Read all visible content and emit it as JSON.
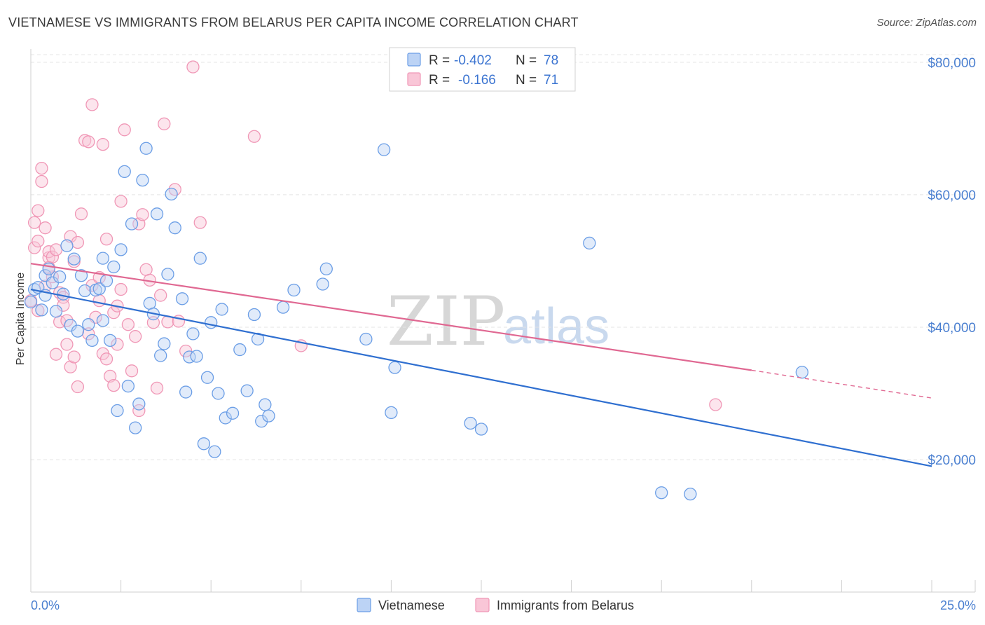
{
  "title": "VIETNAMESE VS IMMIGRANTS FROM BELARUS PER CAPITA INCOME CORRELATION CHART",
  "source": "Source: ZipAtlas.com",
  "watermark": {
    "zip": "ZIP",
    "atlas": "atlas"
  },
  "legend": {
    "rows": [
      {
        "r_label": "R =",
        "r_value": "-0.402",
        "n_label": "N =",
        "n_value": "78"
      },
      {
        "r_label": "R =",
        "r_value": "-0.166",
        "n_label": "N =",
        "n_value": "71"
      }
    ]
  },
  "chart_data": {
    "type": "scatter",
    "title": "VIETNAMESE VS IMMIGRANTS FROM BELARUS PER CAPITA INCOME CORRELATION CHART",
    "xlabel": "",
    "ylabel": "Per Capita Income",
    "xlim": [
      0,
      25
    ],
    "ylim": [
      0,
      82000
    ],
    "x_tick_labels": [
      "0.0%",
      "25.0%"
    ],
    "y_ticks": [
      20000,
      40000,
      60000,
      80000
    ],
    "y_tick_labels": [
      "$20,000",
      "$40,000",
      "$60,000",
      "$80,000"
    ],
    "grid": true,
    "colors": {
      "blue": "#6b9ee6",
      "blue_line": "#2f6fd0",
      "pink": "#f097b6",
      "pink_line": "#e06892"
    },
    "series": [
      {
        "name": "Vietnamese",
        "color": "blue",
        "R": -0.402,
        "N": 78,
        "trend": {
          "x0": 0.0,
          "y0": 45700,
          "x1": 25.0,
          "y1": 19000
        },
        "points": [
          [
            0.0,
            43800
          ],
          [
            0.1,
            45700
          ],
          [
            0.2,
            46000
          ],
          [
            0.3,
            42600
          ],
          [
            0.4,
            44800
          ],
          [
            0.4,
            47800
          ],
          [
            0.5,
            48800
          ],
          [
            0.6,
            46700
          ],
          [
            0.7,
            42400
          ],
          [
            0.8,
            47600
          ],
          [
            0.9,
            45000
          ],
          [
            1.0,
            52300
          ],
          [
            1.1,
            40300
          ],
          [
            1.2,
            50300
          ],
          [
            1.3,
            39400
          ],
          [
            1.4,
            47800
          ],
          [
            1.5,
            45500
          ],
          [
            1.6,
            40400
          ],
          [
            1.7,
            38000
          ],
          [
            1.8,
            45600
          ],
          [
            1.9,
            45800
          ],
          [
            2.0,
            41000
          ],
          [
            2.0,
            50400
          ],
          [
            2.1,
            47000
          ],
          [
            2.2,
            38000
          ],
          [
            2.3,
            49100
          ],
          [
            2.4,
            27400
          ],
          [
            2.5,
            51700
          ],
          [
            2.6,
            63500
          ],
          [
            2.7,
            31100
          ],
          [
            2.8,
            55600
          ],
          [
            2.9,
            24800
          ],
          [
            3.0,
            28400
          ],
          [
            3.1,
            62200
          ],
          [
            3.2,
            67000
          ],
          [
            3.3,
            43600
          ],
          [
            3.4,
            42000
          ],
          [
            3.5,
            57100
          ],
          [
            3.6,
            35700
          ],
          [
            3.7,
            37500
          ],
          [
            3.8,
            48000
          ],
          [
            3.9,
            60100
          ],
          [
            4.0,
            55000
          ],
          [
            4.2,
            44300
          ],
          [
            4.3,
            30200
          ],
          [
            4.4,
            35500
          ],
          [
            4.5,
            39000
          ],
          [
            4.6,
            35600
          ],
          [
            4.7,
            50400
          ],
          [
            4.8,
            22400
          ],
          [
            4.9,
            32400
          ],
          [
            5.0,
            40700
          ],
          [
            5.1,
            21200
          ],
          [
            5.2,
            30000
          ],
          [
            5.3,
            42700
          ],
          [
            5.4,
            26300
          ],
          [
            5.6,
            27000
          ],
          [
            5.8,
            36600
          ],
          [
            6.0,
            30400
          ],
          [
            6.2,
            41900
          ],
          [
            6.3,
            38200
          ],
          [
            6.4,
            25800
          ],
          [
            6.5,
            28300
          ],
          [
            6.6,
            26600
          ],
          [
            7.0,
            43000
          ],
          [
            7.3,
            45600
          ],
          [
            8.1,
            46500
          ],
          [
            8.2,
            48800
          ],
          [
            9.3,
            38200
          ],
          [
            9.8,
            66800
          ],
          [
            10.0,
            27100
          ],
          [
            10.1,
            33900
          ],
          [
            12.2,
            25500
          ],
          [
            12.5,
            24600
          ],
          [
            15.5,
            52700
          ],
          [
            17.5,
            15000
          ],
          [
            18.3,
            14800
          ],
          [
            21.4,
            33200
          ]
        ]
      },
      {
        "name": "Immigrants from Belarus",
        "color": "pink",
        "R": -0.166,
        "N": 71,
        "trend": {
          "x0": 0.0,
          "y0": 49600,
          "x1": 20.0,
          "y1": 33500,
          "dashed_to": 25.0,
          "y_dashed": 29300
        },
        "points": [
          [
            0.0,
            44000
          ],
          [
            0.1,
            52000
          ],
          [
            0.1,
            55800
          ],
          [
            0.2,
            53000
          ],
          [
            0.2,
            57600
          ],
          [
            0.3,
            64000
          ],
          [
            0.3,
            62000
          ],
          [
            0.4,
            46200
          ],
          [
            0.4,
            55000
          ],
          [
            0.5,
            50500
          ],
          [
            0.5,
            51400
          ],
          [
            0.6,
            50600
          ],
          [
            0.6,
            47600
          ],
          [
            0.7,
            51700
          ],
          [
            0.8,
            45200
          ],
          [
            0.8,
            40800
          ],
          [
            0.9,
            44500
          ],
          [
            0.9,
            43300
          ],
          [
            1.0,
            41000
          ],
          [
            1.0,
            37400
          ],
          [
            1.1,
            53700
          ],
          [
            1.1,
            34000
          ],
          [
            1.2,
            35500
          ],
          [
            1.3,
            31000
          ],
          [
            1.4,
            57100
          ],
          [
            1.5,
            68200
          ],
          [
            1.6,
            68000
          ],
          [
            1.7,
            73600
          ],
          [
            1.7,
            46300
          ],
          [
            1.8,
            41500
          ],
          [
            1.9,
            44000
          ],
          [
            2.0,
            67600
          ],
          [
            2.0,
            36000
          ],
          [
            2.1,
            35200
          ],
          [
            2.2,
            32600
          ],
          [
            2.3,
            31200
          ],
          [
            2.3,
            42200
          ],
          [
            2.4,
            37400
          ],
          [
            2.5,
            45700
          ],
          [
            2.5,
            59000
          ],
          [
            2.6,
            69800
          ],
          [
            2.7,
            40400
          ],
          [
            2.8,
            33400
          ],
          [
            3.0,
            27400
          ],
          [
            3.0,
            55600
          ],
          [
            3.1,
            57000
          ],
          [
            3.2,
            48700
          ],
          [
            3.3,
            47100
          ],
          [
            3.4,
            40700
          ],
          [
            3.5,
            30800
          ],
          [
            3.7,
            70700
          ],
          [
            3.8,
            40800
          ],
          [
            4.0,
            60800
          ],
          [
            4.1,
            40900
          ],
          [
            4.3,
            36400
          ],
          [
            4.5,
            79300
          ],
          [
            4.7,
            55800
          ],
          [
            6.2,
            68800
          ],
          [
            7.5,
            37200
          ],
          [
            19.0,
            28300
          ],
          [
            0.2,
            42500
          ],
          [
            0.5,
            49000
          ],
          [
            1.3,
            52800
          ],
          [
            1.9,
            47500
          ],
          [
            2.4,
            43200
          ],
          [
            2.9,
            38600
          ],
          [
            3.6,
            44800
          ],
          [
            1.6,
            39000
          ],
          [
            0.7,
            35900
          ],
          [
            2.1,
            53300
          ],
          [
            1.2,
            49900
          ]
        ]
      }
    ]
  },
  "bottom_legend": [
    {
      "label": "Vietnamese",
      "color": "blue"
    },
    {
      "label": "Immigrants from Belarus",
      "color": "pink"
    }
  ]
}
